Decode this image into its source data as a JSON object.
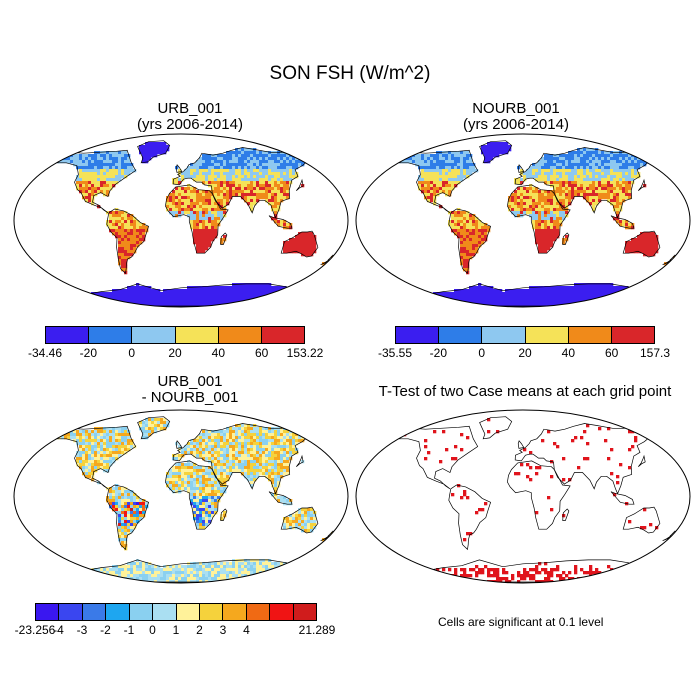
{
  "main_title": "SON FSH (W/m^2)",
  "panels": [
    {
      "title_line1": "URB_001",
      "title_line2": "(yrs 2006-2014)"
    },
    {
      "title_line1": "NOURB_001",
      "title_line2": "(yrs 2006-2014)"
    },
    {
      "title_line1": "URB_001",
      "title_line2": "- NOURB_001"
    },
    {
      "title_line1": "T-Test of two Case means at each grid point",
      "title_line2": ""
    }
  ],
  "colorbars": [
    {
      "colors": [
        "#3b1ef0",
        "#2e7de8",
        "#8ec8f0",
        "#f5e258",
        "#f08a1a",
        "#d9262a"
      ],
      "labels": [
        "-34.46",
        "-20",
        "0",
        "20",
        "40",
        "60",
        "153.22"
      ]
    },
    {
      "colors": [
        "#3b1ef0",
        "#2e7de8",
        "#8ec8f0",
        "#f5e258",
        "#f08a1a",
        "#d9262a"
      ],
      "labels": [
        "-35.55",
        "-20",
        "0",
        "20",
        "40",
        "60",
        "157.3"
      ]
    },
    {
      "colors": [
        "#3a17f0",
        "#3a46f0",
        "#3a7ae8",
        "#1ea6f0",
        "#8ad0f0",
        "#aadff2",
        "#fff29a",
        "#f5d23c",
        "#f5a81e",
        "#f06a14",
        "#f01414",
        "#d01c1c"
      ],
      "labels": [
        "-23.256",
        "-4",
        "-3",
        "-2",
        "-1",
        "0",
        "1",
        "2",
        "3",
        "4",
        "21.289"
      ]
    }
  ],
  "significance_note": "Cells are significant at 0.1 level",
  "colors": {
    "significant": "#e0141c"
  }
}
